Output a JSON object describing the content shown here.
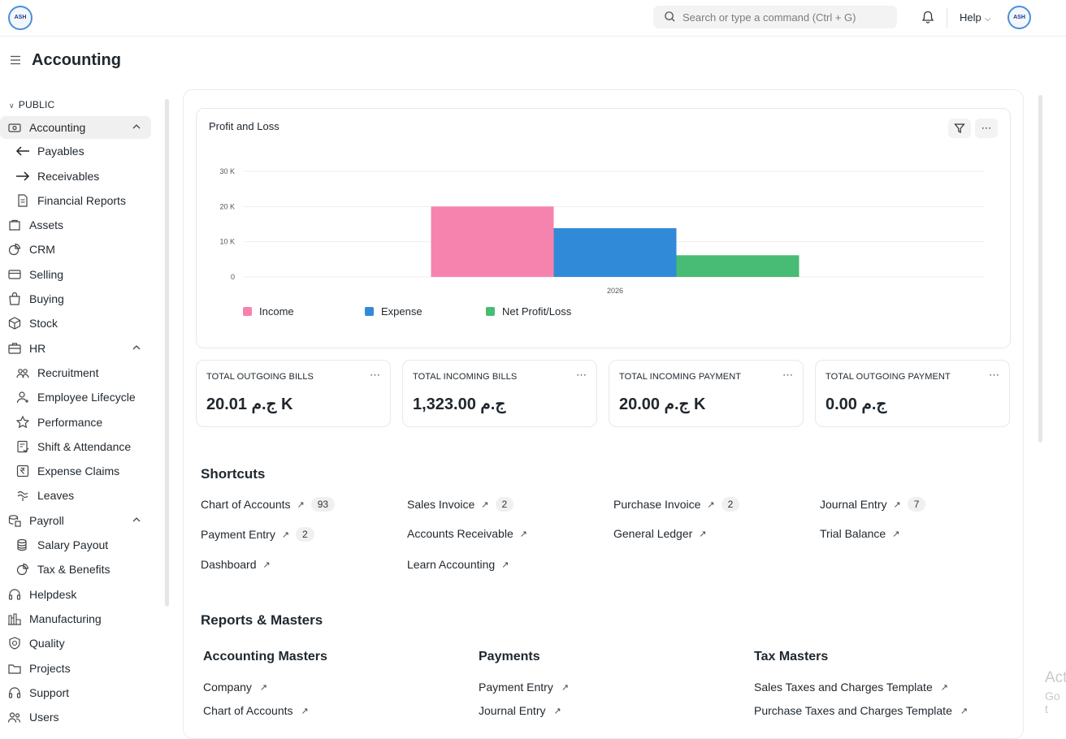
{
  "header": {
    "logo_text": "ASH",
    "search_placeholder": "Search or type a command (Ctrl + G)",
    "help_label": "Help",
    "avatar_text": "ASH"
  },
  "page": {
    "title": "Accounting"
  },
  "sidebar": {
    "section_label": "PUBLIC",
    "items": [
      {
        "label": "Accounting",
        "icon": "accounting-icon",
        "level": 0,
        "active": true,
        "expanded": true
      },
      {
        "label": "Payables",
        "icon": "arrow-left-icon",
        "level": 1
      },
      {
        "label": "Receivables",
        "icon": "arrow-right-icon",
        "level": 1
      },
      {
        "label": "Financial Reports",
        "icon": "file-text-icon",
        "level": 1
      },
      {
        "label": "Assets",
        "icon": "assets-icon",
        "level": 0
      },
      {
        "label": "CRM",
        "icon": "crm-icon",
        "level": 0
      },
      {
        "label": "Selling",
        "icon": "selling-icon",
        "level": 0
      },
      {
        "label": "Buying",
        "icon": "buying-icon",
        "level": 0
      },
      {
        "label": "Stock",
        "icon": "stock-box-icon",
        "level": 0
      },
      {
        "label": "HR",
        "icon": "hr-briefcase-icon",
        "level": 0,
        "expanded": true
      },
      {
        "label": "Recruitment",
        "icon": "recruitment-icon",
        "level": 1
      },
      {
        "label": "Employee Lifecycle",
        "icon": "employee-add-icon",
        "level": 1
      },
      {
        "label": "Performance",
        "icon": "star-icon",
        "level": 1
      },
      {
        "label": "Shift & Attendance",
        "icon": "attendance-icon",
        "level": 1
      },
      {
        "label": "Expense Claims",
        "icon": "rupee-icon",
        "level": 1
      },
      {
        "label": "Leaves",
        "icon": "leaves-icon",
        "level": 1
      },
      {
        "label": "Payroll",
        "icon": "payroll-icon",
        "level": 0,
        "expanded": true
      },
      {
        "label": "Salary Payout",
        "icon": "coins-icon",
        "level": 1
      },
      {
        "label": "Tax & Benefits",
        "icon": "pie-icon",
        "level": 1
      },
      {
        "label": "Helpdesk",
        "icon": "headset-icon",
        "level": 0
      },
      {
        "label": "Manufacturing",
        "icon": "factory-icon",
        "level": 0
      },
      {
        "label": "Quality",
        "icon": "quality-icon",
        "level": 0
      },
      {
        "label": "Projects",
        "icon": "folder-icon",
        "level": 0
      },
      {
        "label": "Support",
        "icon": "support-icon",
        "level": 0
      },
      {
        "label": "Users",
        "icon": "users-icon",
        "level": 0
      }
    ]
  },
  "chart_card": {
    "title": "Profit and Loss",
    "filter_icon": "filter-icon",
    "more_icon": "more-icon"
  },
  "chart_data": {
    "type": "bar",
    "categories": [
      "2026"
    ],
    "series": [
      {
        "name": "Income",
        "values": [
          20010
        ],
        "color": "#f683ae"
      },
      {
        "name": "Expense",
        "values": [
          13850
        ],
        "color": "#318ad8"
      },
      {
        "name": "Net Profit/Loss",
        "values": [
          6160
        ],
        "color": "#48bb74"
      }
    ],
    "ylim": [
      0,
      30000
    ],
    "yticks": [
      0,
      10000,
      20000,
      30000
    ],
    "ytick_labels": [
      "0",
      "10 K",
      "20 K",
      "30 K"
    ],
    "grid": true,
    "legend": "bottom-left"
  },
  "stats": [
    {
      "label": "TOTAL OUTGOING BILLS",
      "value": "ج.م 20.01 K"
    },
    {
      "label": "TOTAL INCOMING BILLS",
      "value": "ج.م 1,323.00"
    },
    {
      "label": "TOTAL INCOMING PAYMENT",
      "value": "ج.م 20.00 K"
    },
    {
      "label": "TOTAL OUTGOING PAYMENT",
      "value": "ج.م 0.00"
    }
  ],
  "shortcuts": {
    "title": "Shortcuts",
    "items": [
      {
        "label": "Chart of Accounts",
        "count": "93"
      },
      {
        "label": "Sales Invoice",
        "count": "2"
      },
      {
        "label": "Purchase Invoice",
        "count": "2"
      },
      {
        "label": "Journal Entry",
        "count": "7"
      },
      {
        "label": "Payment Entry",
        "count": "2"
      },
      {
        "label": "Accounts Receivable",
        "count": ""
      },
      {
        "label": "General Ledger",
        "count": ""
      },
      {
        "label": "Trial Balance",
        "count": ""
      },
      {
        "label": "Dashboard",
        "count": ""
      },
      {
        "label": "Learn Accounting",
        "count": ""
      }
    ]
  },
  "reports": {
    "title": "Reports & Masters",
    "columns": [
      {
        "title": "Accounting Masters",
        "links": [
          "Company",
          "Chart of Accounts"
        ]
      },
      {
        "title": "Payments",
        "links": [
          "Payment Entry",
          "Journal Entry"
        ]
      },
      {
        "title": "Tax Masters",
        "links": [
          "Sales Taxes and Charges Template",
          "Purchase Taxes and Charges Template"
        ]
      }
    ]
  },
  "watermark": {
    "line1": "Act",
    "line2": "Go t"
  }
}
